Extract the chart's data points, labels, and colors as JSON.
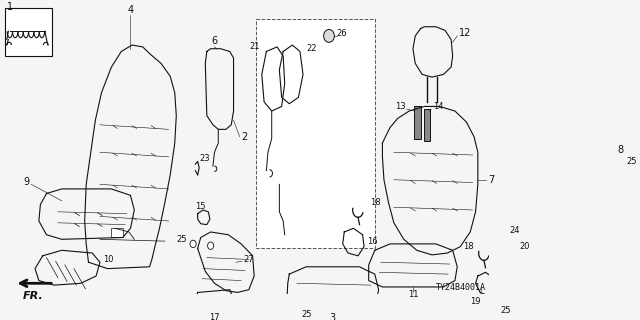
{
  "background_color": "#f0f0f0",
  "line_color": "#1a1a1a",
  "diagram_id": "TY24B4001A",
  "figsize": [
    6.4,
    3.2
  ],
  "dpi": 100
}
